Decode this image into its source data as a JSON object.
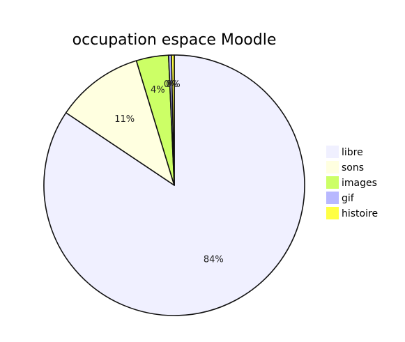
{
  "chart_data": {
    "type": "pie",
    "title": "occupation espace Moodle",
    "categories": [
      "libre",
      "sons",
      "images",
      "gif",
      "histoire"
    ],
    "values": [
      84.4,
      10.9,
      4.0,
      0.35,
      0.35
    ],
    "labels": [
      "84%",
      "11%",
      "4%",
      "0%",
      "0%"
    ],
    "colors": [
      "#f0f0ff",
      "#ffffe0",
      "#ccff66",
      "#b8b8ff",
      "#ffff44"
    ],
    "legend_position": "right",
    "start": "top",
    "direction": "clockwise"
  }
}
